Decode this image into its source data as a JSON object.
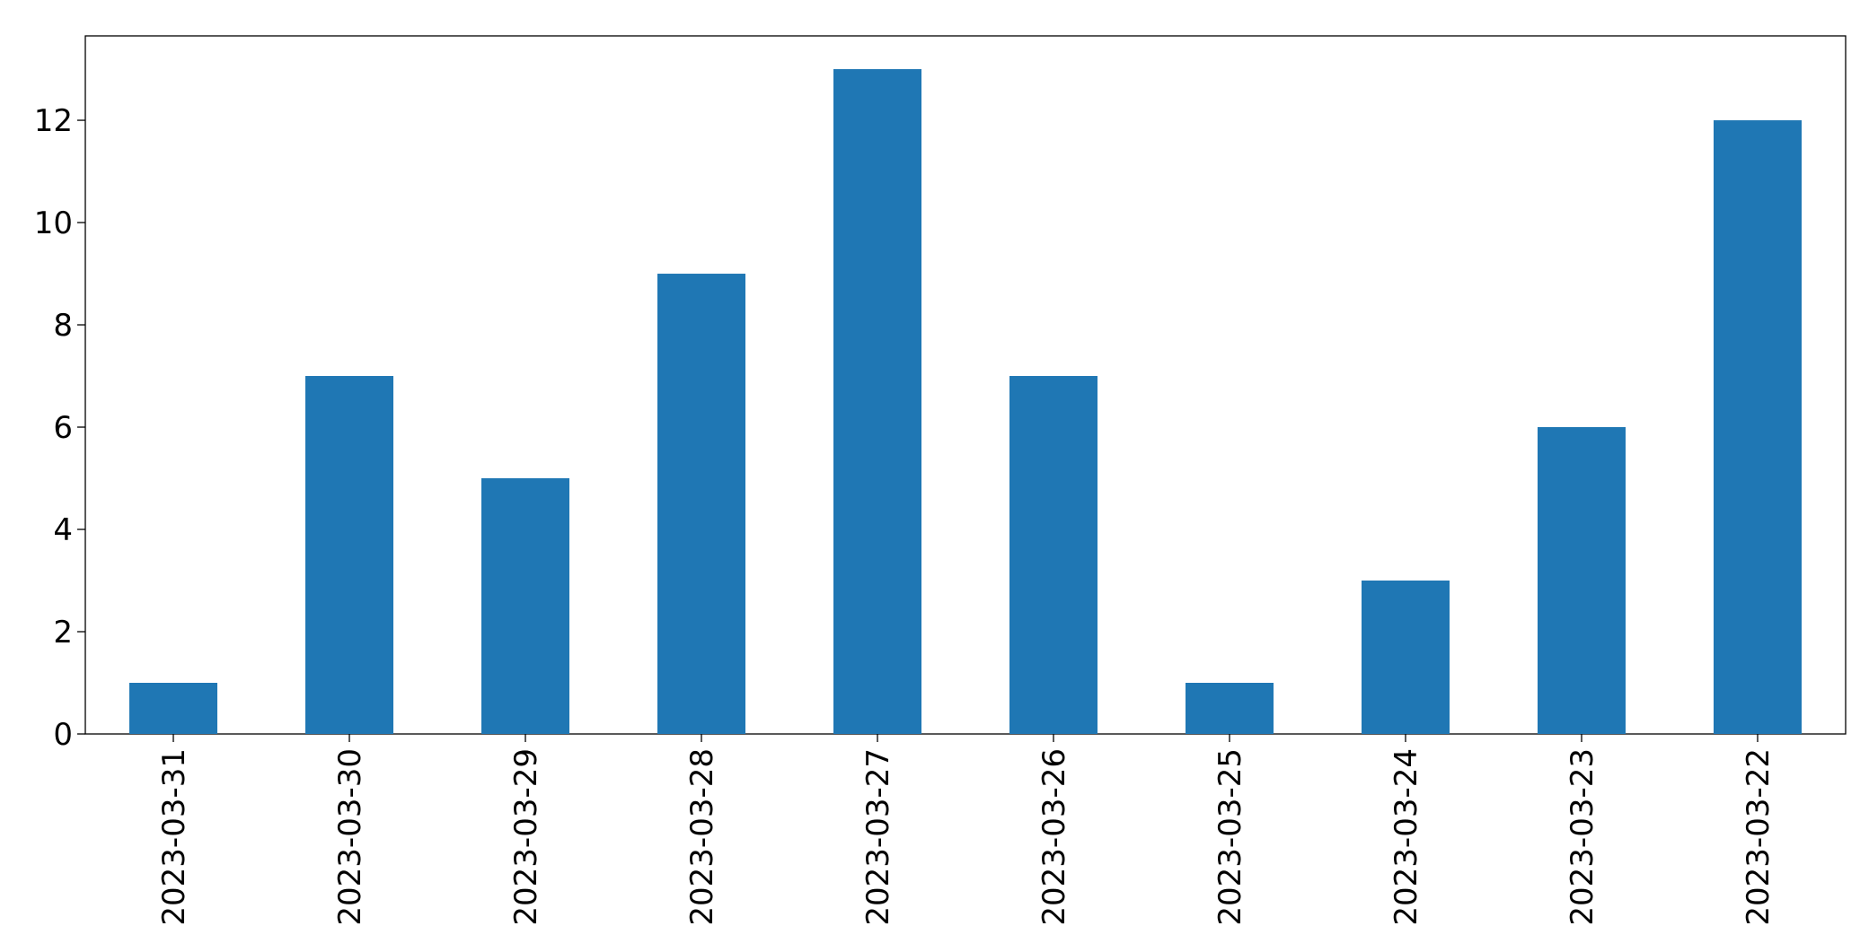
{
  "chart_data": {
    "type": "bar",
    "categories": [
      "2023-03-31",
      "2023-03-30",
      "2023-03-29",
      "2023-03-28",
      "2023-03-27",
      "2023-03-26",
      "2023-03-25",
      "2023-03-24",
      "2023-03-23",
      "2023-03-22"
    ],
    "values": [
      1,
      7,
      5,
      9,
      13,
      7,
      1,
      3,
      6,
      12
    ],
    "color": "#1f77b4",
    "ylim": [
      0,
      13.65
    ],
    "yticks": [
      0,
      2,
      4,
      6,
      8,
      10,
      12
    ],
    "grid": false
  }
}
